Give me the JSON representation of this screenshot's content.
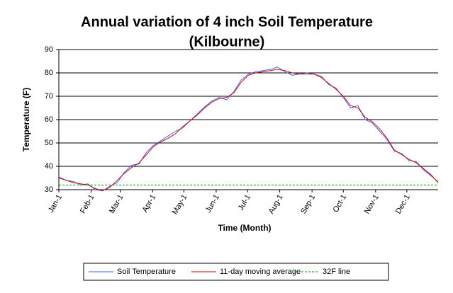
{
  "chart_data": {
    "type": "line",
    "title": [
      "Annual variation of 4 inch Soil Temperature",
      "(Kilbourne)"
    ],
    "x_label": "Time (Month)",
    "y_label": "Temperature (F)",
    "x": [
      0,
      7,
      14,
      21,
      28,
      35,
      42,
      49,
      56,
      63,
      70,
      77,
      84,
      91,
      98,
      105,
      112,
      119,
      126,
      133,
      140,
      147,
      154,
      161,
      168,
      175,
      182,
      189,
      196,
      203,
      210,
      217,
      224,
      231,
      238,
      245,
      252,
      259,
      266,
      273,
      280,
      287,
      294,
      301,
      308,
      315,
      322,
      329,
      336,
      343,
      350,
      357,
      364
    ],
    "series": [
      {
        "name": "Soil Temperature",
        "color": "#3366ff",
        "dash": false,
        "values": [
          35.5,
          34,
          33.5,
          32,
          32.5,
          30,
          29.5,
          31.5,
          33,
          37.5,
          40.5,
          41,
          46,
          49,
          51,
          53,
          55,
          56.5,
          59.5,
          62.5,
          65.5,
          68,
          69.5,
          68.5,
          72,
          77,
          79.5,
          80.5,
          81,
          81.5,
          82.5,
          80.5,
          79,
          79.5,
          80,
          79.5,
          78.5,
          75,
          73.5,
          69.5,
          65,
          66,
          60,
          58.5,
          55,
          51.5,
          46.5,
          45.5,
          42.5,
          42,
          38.5,
          36,
          33.5
        ]
      },
      {
        "name": "11-day moving average",
        "color": "#dd0000",
        "dash": false,
        "values": [
          35,
          34,
          33,
          32.5,
          32,
          30.5,
          29.5,
          31,
          34,
          37,
          39.5,
          41.5,
          45,
          48.5,
          50.5,
          52,
          54,
          57,
          59.5,
          62,
          65,
          67.5,
          69,
          69.5,
          71.5,
          76,
          79,
          80,
          80.5,
          81,
          81.5,
          81,
          80,
          79.5,
          79.5,
          79.5,
          78,
          75.5,
          73,
          70,
          66,
          65,
          61,
          59,
          56,
          52,
          47,
          45,
          43,
          41.5,
          39,
          36.5,
          33
        ]
      },
      {
        "name": "32F line",
        "color": "#009900",
        "dash": true,
        "values": [
          32,
          32,
          32,
          32,
          32,
          32,
          32,
          32,
          32,
          32,
          32,
          32,
          32,
          32,
          32,
          32,
          32,
          32,
          32,
          32,
          32,
          32,
          32,
          32,
          32,
          32,
          32,
          32,
          32,
          32,
          32,
          32,
          32,
          32,
          32,
          32,
          32,
          32,
          32,
          32,
          32,
          32,
          32,
          32,
          32,
          32,
          32,
          32,
          32,
          32,
          32,
          32,
          32
        ]
      }
    ],
    "xlim": [
      0,
      364
    ],
    "xticks": [
      {
        "value": 0,
        "label": "Jan-1"
      },
      {
        "value": 31,
        "label": "Feb-1"
      },
      {
        "value": 59,
        "label": "Mar-1"
      },
      {
        "value": 90,
        "label": "Apr-1"
      },
      {
        "value": 120,
        "label": "May-1"
      },
      {
        "value": 151,
        "label": "Jun-1"
      },
      {
        "value": 181,
        "label": "Jul-1"
      },
      {
        "value": 212,
        "label": "Aug-1"
      },
      {
        "value": 243,
        "label": "Sep-1"
      },
      {
        "value": 273,
        "label": "Oct-1"
      },
      {
        "value": 304,
        "label": "Nov-1"
      },
      {
        "value": 334,
        "label": "Dec-1"
      }
    ],
    "ylim": [
      30,
      90
    ],
    "yticks": [
      30,
      40,
      50,
      60,
      70,
      80,
      90
    ],
    "grid": true,
    "legend": "bottom"
  }
}
